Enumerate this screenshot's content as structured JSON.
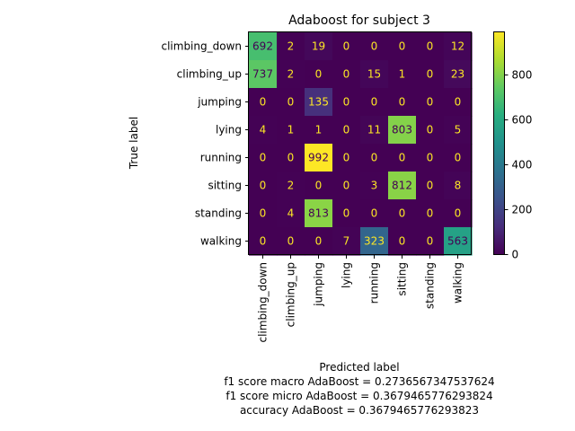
{
  "chart_data": {
    "type": "heatmap",
    "title": "Adaboost for subject 3",
    "xlabel": "Predicted label",
    "ylabel": "True label",
    "x_categories": [
      "climbing_down",
      "climbing_up",
      "jumping",
      "lying",
      "running",
      "sitting",
      "standing",
      "walking"
    ],
    "y_categories": [
      "climbing_down",
      "climbing_up",
      "jumping",
      "lying",
      "running",
      "sitting",
      "standing",
      "walking"
    ],
    "values": [
      [
        692,
        2,
        19,
        0,
        0,
        0,
        0,
        12
      ],
      [
        737,
        2,
        0,
        0,
        15,
        1,
        0,
        23
      ],
      [
        0,
        0,
        135,
        0,
        0,
        0,
        0,
        0
      ],
      [
        4,
        1,
        1,
        0,
        11,
        803,
        0,
        5
      ],
      [
        0,
        0,
        992,
        0,
        0,
        0,
        0,
        0
      ],
      [
        0,
        2,
        0,
        0,
        3,
        812,
        0,
        8
      ],
      [
        0,
        4,
        813,
        0,
        0,
        0,
        0,
        0
      ],
      [
        0,
        0,
        0,
        7,
        323,
        0,
        0,
        563
      ]
    ],
    "colormap": "viridis",
    "vmin": 0,
    "vmax": 992,
    "colorbar_ticks": [
      0,
      200,
      400,
      600,
      800
    ],
    "grid": false,
    "notes": [
      "f1 score macro AdaBoost = 0.2736567347537624",
      "f1 score micro AdaBoost = 0.3679465776293824",
      "accuracy AdaBoost = 0.3679465776293823"
    ]
  }
}
